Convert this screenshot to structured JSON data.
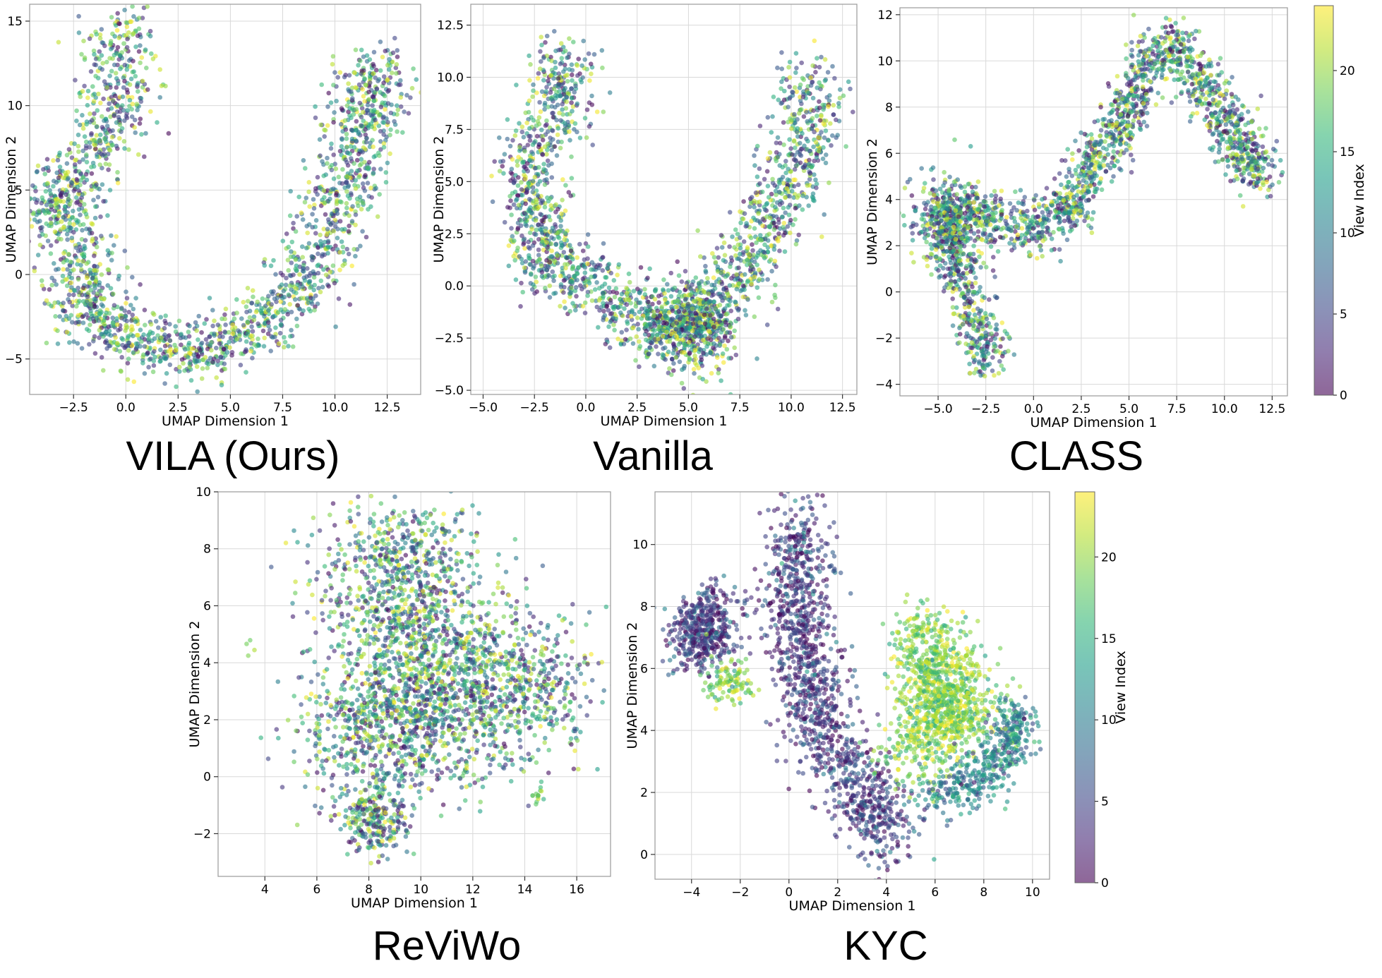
{
  "chart_data": [
    {
      "type": "scatter",
      "caption": "VILA (Ours)",
      "xlabel": "UMAP Dimension 1",
      "ylabel": "UMAP Dimension 2",
      "xlim": [
        -4.6,
        14.1
      ],
      "ylim": [
        -7.1,
        16.0
      ],
      "xticks": [
        -2.5,
        0.0,
        2.5,
        5.0,
        7.5,
        10.0,
        12.5
      ],
      "xtick_labels": [
        "−2.5",
        "0.0",
        "2.5",
        "5.0",
        "7.5",
        "10.0",
        "12.5"
      ],
      "yticks": [
        -5,
        0,
        5,
        10,
        15
      ],
      "ytick_labels": [
        "−5",
        "0",
        "5",
        "10",
        "15"
      ],
      "grid": true,
      "color_field": "view_index",
      "colormap": "viridis",
      "clusters": [
        {
          "path": [
            [
              0.0,
              14.8
            ],
            [
              -0.4,
              11.5
            ],
            [
              -0.8,
              8.2
            ],
            [
              -2.8,
              5.5
            ],
            [
              -3.5,
              3.8
            ],
            [
              -2.2,
              1.8
            ],
            [
              -2.2,
              -1.0
            ],
            [
              -1.5,
              -2.8
            ],
            [
              0.8,
              -4.0
            ],
            [
              3.0,
              -4.6
            ],
            [
              5.0,
              -4.0
            ],
            [
              7.0,
              -2.4
            ],
            [
              8.5,
              -0.2
            ],
            [
              9.5,
              2.5
            ],
            [
              10.5,
              5.3
            ],
            [
              11.2,
              8.0
            ],
            [
              11.8,
              10.5
            ],
            [
              12.0,
              12.8
            ]
          ],
          "spread": 0.9,
          "n": 2200,
          "color": "mixed"
        },
        {
          "path": [
            [
              1.8,
              11.2
            ]
          ],
          "spread": 0.08,
          "n": 3,
          "color": "high"
        }
      ]
    },
    {
      "type": "scatter",
      "caption": "Vanilla",
      "xlabel": "UMAP Dimension 1",
      "ylabel": "UMAP Dimension 2",
      "xlim": [
        -5.6,
        13.2
      ],
      "ylim": [
        -5.2,
        13.5
      ],
      "xticks": [
        -5.0,
        -2.5,
        0.0,
        2.5,
        5.0,
        7.5,
        10.0,
        12.5
      ],
      "xtick_labels": [
        "−5.0",
        "−2.5",
        "0.0",
        "2.5",
        "5.0",
        "7.5",
        "10.0",
        "12.5"
      ],
      "yticks": [
        -5.0,
        -2.5,
        0.0,
        2.5,
        5.0,
        7.5,
        10.0,
        12.5
      ],
      "ytick_labels": [
        "−5.0",
        "−2.5",
        "0.0",
        "2.5",
        "5.0",
        "7.5",
        "10.0",
        "12.5"
      ],
      "grid": true,
      "color_field": "view_index",
      "colormap": "viridis",
      "clusters": [
        {
          "path": [
            [
              -1.0,
              11.0
            ],
            [
              -1.5,
              8.0
            ],
            [
              -3.0,
              5.5
            ],
            [
              -2.0,
              3.0
            ],
            [
              -2.0,
              1.0
            ],
            [
              0.5,
              0.0
            ],
            [
              2.5,
              -1.5
            ],
            [
              4.5,
              -2.0
            ],
            [
              6.0,
              -1.5
            ],
            [
              7.5,
              0.5
            ],
            [
              8.5,
              2.5
            ],
            [
              10.0,
              5.0
            ],
            [
              10.8,
              7.5
            ],
            [
              11.0,
              10.0
            ]
          ],
          "spread": 0.8,
          "n": 2000,
          "color": "mixed"
        },
        {
          "path": [
            [
              5.0,
              -2.0
            ]
          ],
          "spread": 1.1,
          "n": 400,
          "color": "mixed"
        }
      ]
    },
    {
      "type": "scatter",
      "caption": "CLASS",
      "xlabel": "UMAP Dimension 1",
      "ylabel": "UMAP Dimension 2",
      "xlim": [
        -7.0,
        13.3
      ],
      "ylim": [
        -4.5,
        12.3
      ],
      "xticks": [
        -5.0,
        -2.5,
        0.0,
        2.5,
        5.0,
        7.5,
        10.0,
        12.5
      ],
      "xtick_labels": [
        "−5.0",
        "−2.5",
        "0.0",
        "2.5",
        "5.0",
        "7.5",
        "10.0",
        "12.5"
      ],
      "yticks": [
        -4,
        -2,
        0,
        2,
        4,
        6,
        8,
        10,
        12
      ],
      "ytick_labels": [
        "−4",
        "−2",
        "0",
        "2",
        "4",
        "6",
        "8",
        "10",
        "12"
      ],
      "grid": true,
      "color_field": "view_index",
      "colormap": "viridis",
      "clusters": [
        {
          "path": [
            [
              -2.5,
              -3.3
            ],
            [
              -3.2,
              -1.0
            ],
            [
              -4.0,
              1.5
            ],
            [
              -4.5,
              3.5
            ],
            [
              -2.5,
              3.5
            ],
            [
              0.0,
              2.5
            ],
            [
              2.0,
              3.8
            ],
            [
              3.0,
              5.5
            ],
            [
              4.5,
              7.0
            ],
            [
              5.5,
              9.0
            ],
            [
              7.0,
              10.8
            ],
            [
              8.5,
              9.5
            ],
            [
              10.0,
              7.5
            ],
            [
              11.0,
              6.0
            ],
            [
              11.8,
              5.0
            ]
          ],
          "spread": 0.6,
          "n": 2100,
          "color": "mixed"
        },
        {
          "path": [
            [
              -4.5,
              3.0
            ]
          ],
          "spread": 1.0,
          "n": 300,
          "color": "mixed"
        }
      ]
    },
    {
      "type": "scatter",
      "caption": "ReViWo",
      "xlabel": "UMAP Dimension 1",
      "ylabel": "UMAP Dimension 2",
      "xlim": [
        2.2,
        17.3
      ],
      "ylim": [
        -3.5,
        10.0
      ],
      "xticks": [
        4,
        6,
        8,
        10,
        12,
        14,
        16
      ],
      "xtick_labels": [
        "4",
        "6",
        "8",
        "10",
        "12",
        "14",
        "16"
      ],
      "yticks": [
        -2,
        0,
        2,
        4,
        6,
        8,
        10
      ],
      "ytick_labels": [
        "−2",
        "0",
        "2",
        "4",
        "6",
        "8",
        "10"
      ],
      "grid": true,
      "color_field": "view_index",
      "colormap": "viridis",
      "clusters": [
        {
          "path": [
            [
              7.5,
              7.0
            ],
            [
              10.5,
              7.5
            ],
            [
              9.0,
              4.5
            ],
            [
              12.5,
              3.5
            ],
            [
              15.0,
              3.0
            ],
            [
              6.5,
              2.0
            ],
            [
              9.0,
              2.0
            ],
            [
              11.5,
              1.5
            ]
          ],
          "spread": 1.3,
          "n": 2600,
          "color": "mixed"
        },
        {
          "path": [
            [
              8.3,
              -1.5
            ]
          ],
          "spread": 0.6,
          "n": 250,
          "color": "mixed"
        },
        {
          "path": [
            [
              14.5,
              -0.7
            ]
          ],
          "spread": 0.15,
          "n": 14,
          "color": "high"
        },
        {
          "path": [
            [
              3.3,
              4.6
            ]
          ],
          "spread": 0.15,
          "n": 4,
          "color": "high"
        }
      ]
    },
    {
      "type": "scatter",
      "caption": "KYC",
      "xlabel": "UMAP Dimension 1",
      "ylabel": "UMAP Dimension 2",
      "xlim": [
        -5.5,
        10.7
      ],
      "ylim": [
        -0.8,
        11.7
      ],
      "xticks": [
        -4,
        -2,
        0,
        2,
        4,
        6,
        8,
        10
      ],
      "xtick_labels": [
        "−4",
        "−2",
        "0",
        "2",
        "4",
        "6",
        "8",
        "10"
      ],
      "yticks": [
        0,
        2,
        4,
        6,
        8,
        10
      ],
      "ytick_labels": [
        "0",
        "2",
        "4",
        "6",
        "8",
        "10"
      ],
      "grid": true,
      "color_field": "view_index",
      "colormap": "viridis",
      "clusters": [
        {
          "path": [
            [
              0.5,
              10.5
            ],
            [
              0.5,
              9.0
            ],
            [
              0.0,
              7.5
            ],
            [
              1.0,
              6.0
            ],
            [
              1.0,
              4.5
            ],
            [
              2.0,
              3.0
            ],
            [
              3.5,
              1.5
            ],
            [
              4.0,
              0.5
            ]
          ],
          "spread": 0.7,
          "n": 1300,
          "color": "low"
        },
        {
          "path": [
            [
              -4.0,
              7.0
            ],
            [
              -3.0,
              7.5
            ]
          ],
          "spread": 0.6,
          "n": 450,
          "color": "low"
        },
        {
          "path": [
            [
              5.0,
              7.0
            ],
            [
              6.5,
              6.0
            ],
            [
              5.5,
              4.5
            ],
            [
              8.0,
              5.0
            ],
            [
              4.5,
              3.0
            ]
          ],
          "spread": 0.7,
          "n": 1100,
          "color": "high"
        },
        {
          "path": [
            [
              5.5,
              1.8
            ],
            [
              8.0,
              2.5
            ],
            [
              9.0,
              3.5
            ],
            [
              9.5,
              4.5
            ]
          ],
          "spread": 0.45,
          "n": 450,
          "color": "mid"
        },
        {
          "path": [
            [
              -2.5,
              5.5
            ]
          ],
          "spread": 0.45,
          "n": 110,
          "color": "high"
        }
      ]
    }
  ],
  "colorbars": [
    {
      "label": "View Index",
      "ticks": [
        0,
        5,
        10,
        15,
        20
      ],
      "tick_labels": [
        "0",
        "5",
        "10",
        "15",
        "20"
      ],
      "range": [
        0,
        24
      ]
    },
    {
      "label": "View Index",
      "ticks": [
        0,
        5,
        10,
        15,
        20
      ],
      "tick_labels": [
        "0",
        "5",
        "10",
        "15",
        "20"
      ],
      "range": [
        0,
        24
      ]
    }
  ]
}
